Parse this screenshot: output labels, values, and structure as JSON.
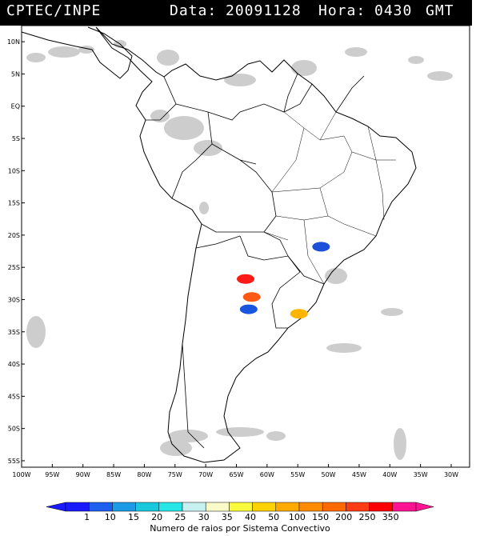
{
  "header": {
    "source": "CPTEC/INPE",
    "date_label": "Data:",
    "date_value": "20091128",
    "hour_label": "Hora:",
    "hour_value": "0430",
    "timezone": "GMT"
  },
  "map": {
    "lat_labels": [
      "10N",
      "5N",
      "EQ",
      "5S",
      "10S",
      "15S",
      "20S",
      "25S",
      "30S",
      "35S",
      "40S",
      "45S",
      "50S",
      "55S"
    ],
    "lon_labels": [
      "100W",
      "95W",
      "90W",
      "85W",
      "80W",
      "75W",
      "70W",
      "65W",
      "60W",
      "55W",
      "50W",
      "45W",
      "40W",
      "35W",
      "30W"
    ],
    "cloud_color": "#c8c8c8",
    "systems": [
      {
        "name": "system-1",
        "lon": -63.5,
        "lat": -26.8,
        "class": 300,
        "color": "#ff1a1a"
      },
      {
        "name": "system-2",
        "lon": -62.5,
        "lat": -29.6,
        "class": 250,
        "color": "#ff5a14"
      },
      {
        "name": "system-3",
        "lon": -63.0,
        "lat": -31.5,
        "class": 15,
        "color": "#1a55e0"
      },
      {
        "name": "system-4",
        "lon": -54.8,
        "lat": -32.2,
        "class": 100,
        "color": "#ffb400"
      },
      {
        "name": "system-5",
        "lon": -51.2,
        "lat": -21.8,
        "class": 10,
        "color": "#1e4fd8"
      }
    ]
  },
  "colorbar": {
    "labels": [
      "1",
      "10",
      "15",
      "20",
      "25",
      "30",
      "35",
      "40",
      "50",
      "100",
      "150",
      "200",
      "250",
      "350"
    ],
    "colors": [
      "#1a1aff",
      "#1e5ff0",
      "#1e9be6",
      "#19c8dc",
      "#28e6e6",
      "#c8f0f0",
      "#fafac8",
      "#fafa3c",
      "#ffd200",
      "#ffaa00",
      "#ff8c00",
      "#ff6a00",
      "#ff3c14",
      "#ff0000",
      "#ff1493"
    ],
    "title": "Numero de raios por Sistema Convectivo"
  }
}
